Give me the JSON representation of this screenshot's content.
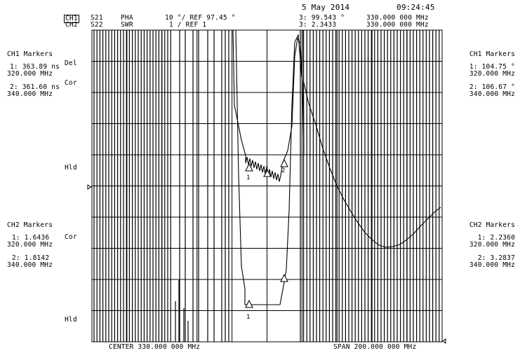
{
  "header": {
    "date": "5 May 2014",
    "time": "09:24:45",
    "ch1": {
      "label": "CH1",
      "param": "S21",
      "format": "PHA",
      "scale": "10 °/ REF 97.45 °",
      "marker": "3: 99.543 °",
      "marker_freq": "330.000 000 MHz"
    },
    "ch2": {
      "label": "CH2",
      "param": "S22",
      "format": "SWR",
      "scale": "1 / REF 1",
      "marker": "3: 2.3433",
      "marker_freq": "330.000 000 MHz"
    }
  },
  "left_labels": {
    "ch1_title": "CH1 Markers",
    "ch1_m1": "1: 363.89 ns",
    "ch1_m1_freq": "320.000 MHz",
    "ch1_m2": "2: 361.60 ns",
    "ch1_m2_freq": "340.000 MHz",
    "ch2_title": "CH2 Markers",
    "ch2_m1": "1: 1.6436",
    "ch2_m1_freq": "320.000 MHz",
    "ch2_m2": "2: 1.8142",
    "ch2_m2_freq": "340.000 MHz"
  },
  "right_labels": {
    "ch1_title": "CH1 Markers",
    "ch1_m1": "1: 104.75 °",
    "ch1_m1_freq": "320.000 MHz",
    "ch1_m2": "2: 106.67 °",
    "ch1_m2_freq": "340.000 MHz",
    "ch2_title": "CH2 Markers",
    "ch2_m1": "1: 2.2360",
    "ch2_m1_freq": "320.000 MHz",
    "ch2_m2": "2: 3.2837",
    "ch2_m2_freq": "340.000 MHz"
  },
  "side_flags": {
    "del": "Del",
    "cor1": "Cor",
    "hld1": "Hld",
    "cor2": "Cor",
    "hld2": "Hld"
  },
  "footer": {
    "center": "CENTER 330.000 000 MHz",
    "span": "SPAN 200.000 000 MHz"
  },
  "markers": {
    "m1": "1",
    "m2": "2",
    "m3": "3"
  }
}
